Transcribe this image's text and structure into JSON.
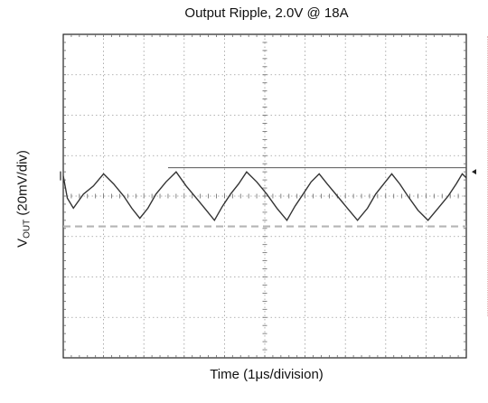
{
  "chart_data": {
    "type": "line",
    "title": "Output Ripple, 2.0V @ 18A",
    "xlabel": "Time (1μs/division)",
    "ylabel_main": "V",
    "ylabel_sub": "OUT",
    "ylabel_rest": " (20mV/div)",
    "x_divisions": 10,
    "y_divisions": 8,
    "xlim": [
      0,
      10
    ],
    "ylim": [
      -4,
      4
    ],
    "grid": true,
    "x_units": "µs",
    "y_units": "div (20mV/div)",
    "series": [
      {
        "trace_color": "#333333",
        "x": [
          0.0,
          0.1,
          0.25,
          0.5,
          0.75,
          1.0,
          1.25,
          1.5,
          1.7,
          1.9,
          2.1,
          2.3,
          2.55,
          2.8,
          3.05,
          3.3,
          3.55,
          3.75,
          3.95,
          4.15,
          4.35,
          4.55,
          4.8,
          5.05,
          5.3,
          5.55,
          5.75,
          5.95,
          6.15,
          6.35,
          6.55,
          6.8,
          7.05,
          7.3,
          7.55,
          7.75,
          7.95,
          8.15,
          8.35,
          8.55,
          8.8,
          9.05,
          9.3,
          9.55,
          9.75,
          9.9,
          10.0
        ],
        "y": [
          0.5,
          -0.05,
          -0.3,
          0.05,
          0.25,
          0.55,
          0.3,
          0.0,
          -0.3,
          -0.55,
          -0.3,
          0.05,
          0.35,
          0.6,
          0.25,
          -0.05,
          -0.35,
          -0.6,
          -0.25,
          0.05,
          0.3,
          0.6,
          0.35,
          0.05,
          -0.3,
          -0.6,
          -0.25,
          0.05,
          0.35,
          0.55,
          0.3,
          0.0,
          -0.3,
          -0.6,
          -0.3,
          0.05,
          0.3,
          0.55,
          0.3,
          0.0,
          -0.35,
          -0.6,
          -0.3,
          0.0,
          0.3,
          0.55,
          0.45
        ]
      }
    ],
    "reference_lines": [
      {
        "style": "solid",
        "y": 0.7,
        "x_start": 2.6,
        "x_end": 10.0
      },
      {
        "style": "dashed",
        "y": -0.75,
        "x_start": 0.0,
        "x_end": 10.0
      }
    ],
    "marker_color": "#222222"
  }
}
